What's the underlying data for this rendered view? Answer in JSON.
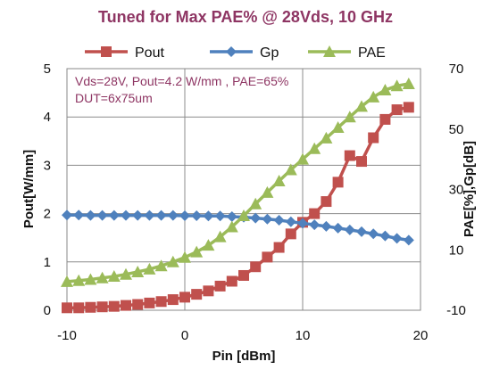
{
  "chart_data": {
    "type": "line",
    "title": "Tuned for Max PAE% @ 28Vds, 10 GHz",
    "xlabel": "Pin [dBm]",
    "ylabel_left": "Pout[W/mm]",
    "ylabel_right": "PAE[%],Gp[dB]",
    "xlim": [
      -10,
      20
    ],
    "ylim_left": [
      0,
      5
    ],
    "ylim_right": [
      -10,
      70
    ],
    "x_ticks": [
      "-10",
      "0",
      "10",
      "20"
    ],
    "y_left_ticks": [
      "0",
      "1",
      "2",
      "3",
      "4",
      "5"
    ],
    "y_right_ticks": [
      "-10",
      "10",
      "30",
      "50",
      "70"
    ],
    "grid": "vertical and horizontal",
    "legend_position": "top",
    "annotations": [
      "Vds=28V, Pout=4.2 W/mm , PAE=65%",
      "DUT=6x75um"
    ],
    "x": [
      -10,
      -9,
      -8,
      -7,
      -6,
      -5,
      -4,
      -3,
      -2,
      -1,
      0,
      1,
      2,
      3,
      4,
      5,
      6,
      7,
      8,
      9,
      10,
      11,
      12,
      13,
      14,
      15,
      16,
      17,
      18,
      19
    ],
    "series": [
      {
        "name": "Pout",
        "axis": "left",
        "color": "#c0504d",
        "marker": "square",
        "values": [
          0.05,
          0.05,
          0.06,
          0.07,
          0.08,
          0.1,
          0.12,
          0.15,
          0.18,
          0.22,
          0.27,
          0.33,
          0.4,
          0.5,
          0.6,
          0.72,
          0.9,
          1.1,
          1.3,
          1.58,
          1.82,
          2.0,
          2.25,
          2.65,
          3.2,
          3.08,
          3.57,
          3.95,
          4.15,
          4.2
        ]
      },
      {
        "name": "Gp",
        "axis": "right",
        "color": "#4f81bd",
        "marker": "diamond",
        "values": [
          21.5,
          21.5,
          21.4,
          21.4,
          21.4,
          21.4,
          21.4,
          21.4,
          21.4,
          21.4,
          21.3,
          21.3,
          21.2,
          21.2,
          21.0,
          20.8,
          20.5,
          20.2,
          19.8,
          19.3,
          18.8,
          18.3,
          17.8,
          17.2,
          16.6,
          16.0,
          15.3,
          14.6,
          13.8,
          13.2
        ]
      },
      {
        "name": "PAE",
        "axis": "right",
        "color": "#9bbb59",
        "marker": "triangle",
        "values": [
          -0.5,
          -0.2,
          0.2,
          0.7,
          1.2,
          1.9,
          2.7,
          3.6,
          4.7,
          6.0,
          7.5,
          9.3,
          11.5,
          14.3,
          17.6,
          21.3,
          25.2,
          29.0,
          32.8,
          36.5,
          40.0,
          43.5,
          47.0,
          50.5,
          54.0,
          57.5,
          60.6,
          62.9,
          64.3,
          65.0
        ]
      }
    ]
  }
}
